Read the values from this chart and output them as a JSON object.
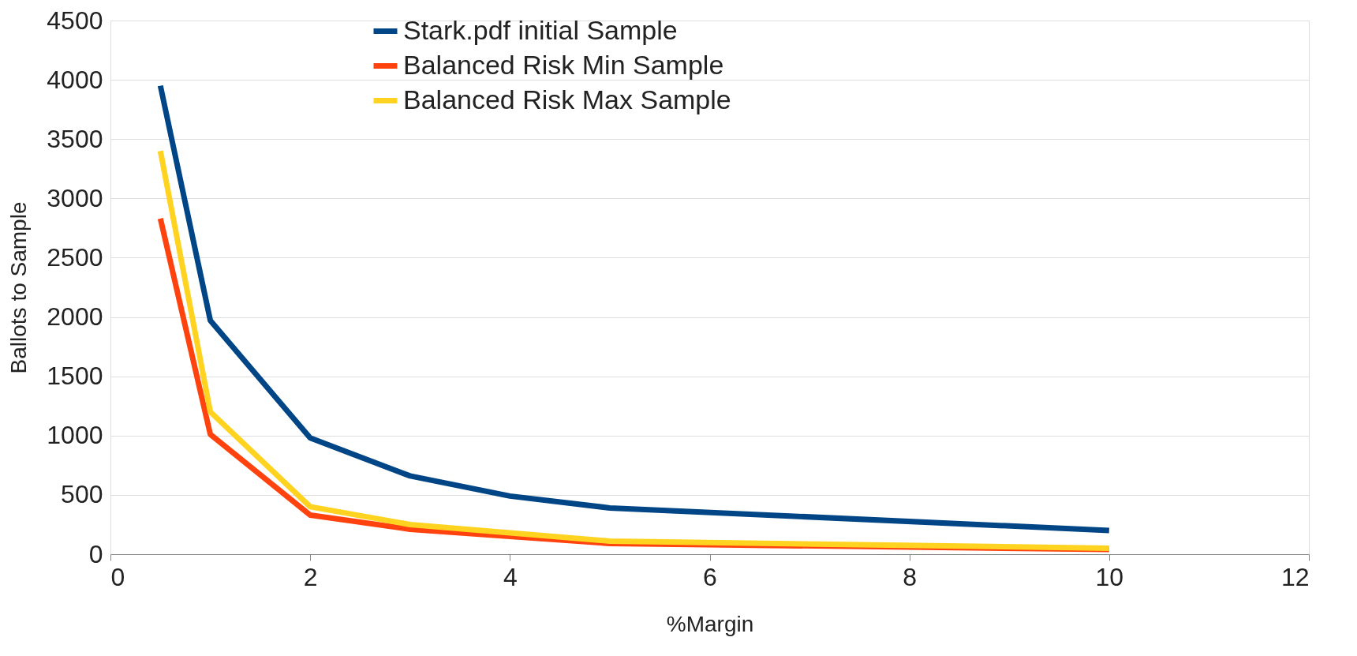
{
  "chart_data": {
    "type": "line",
    "xlabel": "%Margin",
    "ylabel": "Ballots to Sample",
    "x": [
      0.5,
      1,
      2,
      3,
      4,
      5,
      10
    ],
    "series": [
      {
        "name": "Stark.pdf initial Sample",
        "color": "#004586",
        "values": [
          3950,
          1970,
          980,
          660,
          490,
          390,
          200
        ]
      },
      {
        "name": "Balanced Risk Min Sample",
        "color": "#ff420e",
        "values": [
          2830,
          1010,
          330,
          210,
          150,
          90,
          40
        ]
      },
      {
        "name": "Balanced Risk Max Sample",
        "color": "#ffd320",
        "values": [
          3400,
          1200,
          400,
          250,
          180,
          110,
          50
        ]
      }
    ],
    "xlim": [
      0,
      12
    ],
    "xticks": [
      0,
      2,
      4,
      6,
      8,
      10,
      12
    ],
    "ylim": [
      0,
      4500
    ],
    "yticks": [
      0,
      500,
      1000,
      1500,
      2000,
      2500,
      3000,
      3500,
      4000,
      4500
    ],
    "grid": "y",
    "legend": "top",
    "marker": "none",
    "line_style": "solid"
  }
}
